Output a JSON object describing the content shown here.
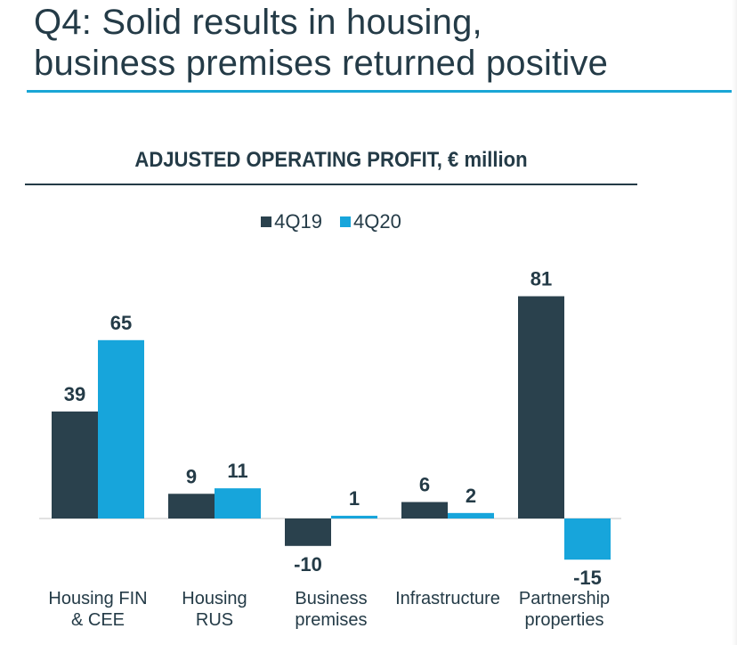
{
  "slide": {
    "title": "Q4: Solid results in housing,\nbusiness premises returned positive"
  },
  "colors": {
    "title": "#243b47",
    "accent_rule": "#1aa6d6",
    "series_4Q19": "#2a414d",
    "series_4Q20": "#17a5db"
  },
  "chart_data": {
    "type": "bar",
    "title": "ADJUSTED OPERATING PROFIT, € million",
    "categories": [
      "Housing FIN\n& CEE",
      "Housing\nRUS",
      "Business\npremises",
      "Infrastructure",
      "Partnership\nproperties"
    ],
    "series": [
      {
        "name": "4Q19",
        "values": [
          39,
          9,
          -10,
          6,
          81
        ]
      },
      {
        "name": "4Q20",
        "values": [
          65,
          11,
          1,
          2,
          -15
        ]
      }
    ],
    "ylim": [
      -15,
      81
    ],
    "grid": false,
    "legend": "top-center",
    "data_labels": true
  }
}
